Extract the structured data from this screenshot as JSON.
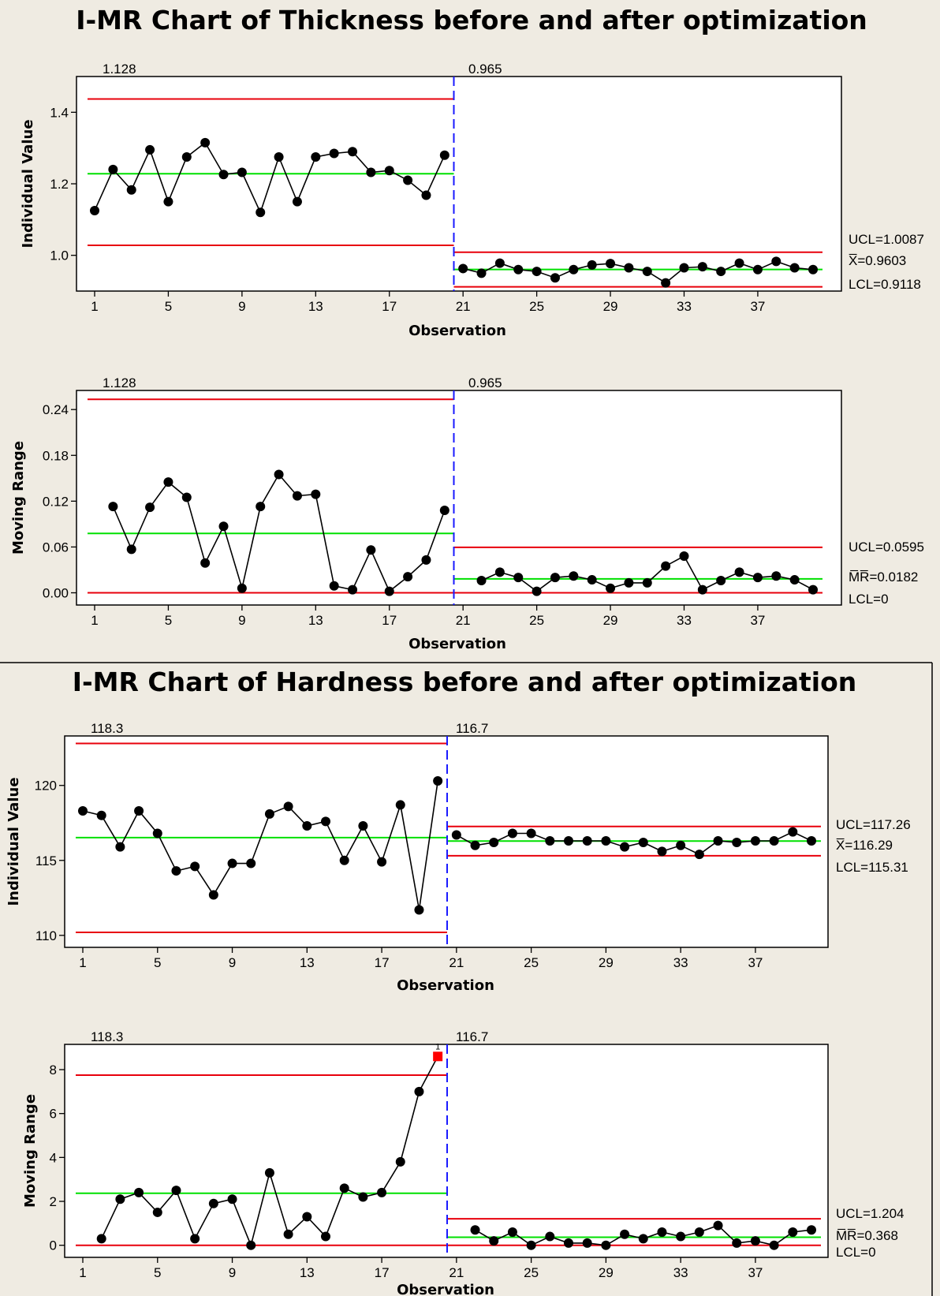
{
  "chart_data": [
    {
      "type": "line",
      "title": "I-MR Chart of Thickness before and after optimization",
      "xlabel": "Observation",
      "ylabel": "Individual Value",
      "xticks": [
        1,
        5,
        9,
        13,
        17,
        21,
        25,
        29,
        33,
        37
      ],
      "yticks": [
        "1.0",
        "1.2",
        "1.4"
      ],
      "ylim": [
        0.9,
        1.5
      ],
      "xlim": [
        0,
        41
      ],
      "stage_split": 20.5,
      "stages": [
        {
          "label": "1.128",
          "x_start": 1,
          "x_end": 20,
          "center": 1.228,
          "ucl": 1.437,
          "lcl": 1.028
        },
        {
          "label": "0.965",
          "x_start": 21,
          "x_end": 40,
          "center": 0.9603,
          "ucl": 1.0087,
          "lcl": 0.9118
        }
      ],
      "limit_labels": [
        "UCL=1.0087",
        "X̅=0.9603",
        "LCL=0.9118"
      ],
      "points": [
        {
          "x": 1,
          "y": 1.125
        },
        {
          "x": 2,
          "y": 1.24
        },
        {
          "x": 3,
          "y": 1.183
        },
        {
          "x": 4,
          "y": 1.295
        },
        {
          "x": 5,
          "y": 1.15
        },
        {
          "x": 6,
          "y": 1.275
        },
        {
          "x": 7,
          "y": 1.315
        },
        {
          "x": 8,
          "y": 1.226
        },
        {
          "x": 9,
          "y": 1.232
        },
        {
          "x": 10,
          "y": 1.12
        },
        {
          "x": 11,
          "y": 1.275
        },
        {
          "x": 12,
          "y": 1.15
        },
        {
          "x": 13,
          "y": 1.275
        },
        {
          "x": 14,
          "y": 1.285
        },
        {
          "x": 15,
          "y": 1.29
        },
        {
          "x": 16,
          "y": 1.232
        },
        {
          "x": 17,
          "y": 1.237
        },
        {
          "x": 18,
          "y": 1.21
        },
        {
          "x": 19,
          "y": 1.168
        },
        {
          "x": 20,
          "y": 1.28
        },
        {
          "x": 21,
          "y": 0.963
        },
        {
          "x": 22,
          "y": 0.95
        },
        {
          "x": 23,
          "y": 0.978
        },
        {
          "x": 24,
          "y": 0.96
        },
        {
          "x": 25,
          "y": 0.955
        },
        {
          "x": 26,
          "y": 0.937
        },
        {
          "x": 27,
          "y": 0.96
        },
        {
          "x": 28,
          "y": 0.973
        },
        {
          "x": 29,
          "y": 0.977
        },
        {
          "x": 30,
          "y": 0.965
        },
        {
          "x": 31,
          "y": 0.955
        },
        {
          "x": 32,
          "y": 0.923
        },
        {
          "x": 33,
          "y": 0.965
        },
        {
          "x": 34,
          "y": 0.968
        },
        {
          "x": 35,
          "y": 0.955
        },
        {
          "x": 36,
          "y": 0.978
        },
        {
          "x": 37,
          "y": 0.96
        },
        {
          "x": 38,
          "y": 0.983
        },
        {
          "x": 39,
          "y": 0.965
        },
        {
          "x": 40,
          "y": 0.96
        }
      ]
    },
    {
      "type": "line",
      "title": "",
      "xlabel": "Observation",
      "ylabel": "Moving Range",
      "xticks": [
        1,
        5,
        9,
        13,
        17,
        21,
        25,
        29,
        33,
        37
      ],
      "yticks": [
        "0.00",
        "0.06",
        "0.12",
        "0.18",
        "0.24"
      ],
      "ylim": [
        -0.016,
        0.265
      ],
      "xlim": [
        0,
        41
      ],
      "stage_split": 20.5,
      "stages": [
        {
          "label": "1.128",
          "x_start": 1,
          "x_end": 20,
          "center": 0.0777,
          "ucl": 0.2534,
          "lcl": 0
        },
        {
          "label": "0.965",
          "x_start": 21,
          "x_end": 40,
          "center": 0.0182,
          "ucl": 0.0595,
          "lcl": 0
        }
      ],
      "limit_labels": [
        "UCL=0.0595",
        "M̅R̅=0.0182",
        "LCL=0"
      ],
      "points": [
        {
          "x": 2,
          "y": 0.113
        },
        {
          "x": 3,
          "y": 0.057
        },
        {
          "x": 4,
          "y": 0.112
        },
        {
          "x": 5,
          "y": 0.145
        },
        {
          "x": 6,
          "y": 0.125
        },
        {
          "x": 7,
          "y": 0.039
        },
        {
          "x": 8,
          "y": 0.087
        },
        {
          "x": 9,
          "y": 0.006
        },
        {
          "x": 10,
          "y": 0.113
        },
        {
          "x": 11,
          "y": 0.155
        },
        {
          "x": 12,
          "y": 0.127
        },
        {
          "x": 13,
          "y": 0.129
        },
        {
          "x": 14,
          "y": 0.009
        },
        {
          "x": 15,
          "y": 0.004
        },
        {
          "x": 16,
          "y": 0.056
        },
        {
          "x": 17,
          "y": 0.002
        },
        {
          "x": 18,
          "y": 0.021
        },
        {
          "x": 19,
          "y": 0.043
        },
        {
          "x": 20,
          "y": 0.108
        },
        {
          "x": 22,
          "y": 0.016
        },
        {
          "x": 23,
          "y": 0.027
        },
        {
          "x": 24,
          "y": 0.02
        },
        {
          "x": 25,
          "y": 0.002
        },
        {
          "x": 26,
          "y": 0.02
        },
        {
          "x": 27,
          "y": 0.022
        },
        {
          "x": 28,
          "y": 0.017
        },
        {
          "x": 29,
          "y": 0.006
        },
        {
          "x": 30,
          "y": 0.013
        },
        {
          "x": 31,
          "y": 0.013
        },
        {
          "x": 32,
          "y": 0.035
        },
        {
          "x": 33,
          "y": 0.048
        },
        {
          "x": 34,
          "y": 0.004
        },
        {
          "x": 35,
          "y": 0.016
        },
        {
          "x": 36,
          "y": 0.027
        },
        {
          "x": 37,
          "y": 0.02
        },
        {
          "x": 38,
          "y": 0.022
        },
        {
          "x": 39,
          "y": 0.017
        },
        {
          "x": 40,
          "y": 0.004
        }
      ]
    },
    {
      "type": "line",
      "title": "I-MR Chart of Hardness before and after optimization",
      "xlabel": "Observation",
      "ylabel": "Individual Value",
      "xticks": [
        1,
        5,
        9,
        13,
        17,
        21,
        25,
        29,
        33,
        37
      ],
      "yticks": [
        "110",
        "115",
        "120"
      ],
      "ylim": [
        109.2,
        123.3
      ],
      "xlim": [
        0,
        41
      ],
      "stage_split": 20.5,
      "stages": [
        {
          "label": "118.3",
          "x_start": 1,
          "x_end": 20,
          "center": 116.52,
          "ucl": 122.8,
          "lcl": 110.2
        },
        {
          "label": "116.7",
          "x_start": 21,
          "x_end": 40,
          "center": 116.29,
          "ucl": 117.26,
          "lcl": 115.31
        }
      ],
      "limit_labels": [
        "UCL=117.26",
        "X̅=116.29",
        "LCL=115.31"
      ],
      "points": [
        {
          "x": 1,
          "y": 118.3
        },
        {
          "x": 2,
          "y": 118.0
        },
        {
          "x": 3,
          "y": 115.9
        },
        {
          "x": 4,
          "y": 118.3
        },
        {
          "x": 5,
          "y": 116.8
        },
        {
          "x": 6,
          "y": 114.3
        },
        {
          "x": 7,
          "y": 114.6
        },
        {
          "x": 8,
          "y": 112.7
        },
        {
          "x": 9,
          "y": 114.8
        },
        {
          "x": 10,
          "y": 114.8
        },
        {
          "x": 11,
          "y": 118.1
        },
        {
          "x": 12,
          "y": 118.6
        },
        {
          "x": 13,
          "y": 117.3
        },
        {
          "x": 14,
          "y": 117.6
        },
        {
          "x": 15,
          "y": 115.0
        },
        {
          "x": 16,
          "y": 117.3
        },
        {
          "x": 17,
          "y": 114.9
        },
        {
          "x": 18,
          "y": 118.7
        },
        {
          "x": 19,
          "y": 111.7
        },
        {
          "x": 20,
          "y": 120.3
        },
        {
          "x": 21,
          "y": 116.7
        },
        {
          "x": 22,
          "y": 116.0
        },
        {
          "x": 23,
          "y": 116.2
        },
        {
          "x": 24,
          "y": 116.8
        },
        {
          "x": 25,
          "y": 116.8
        },
        {
          "x": 26,
          "y": 116.3
        },
        {
          "x": 27,
          "y": 116.3
        },
        {
          "x": 28,
          "y": 116.3
        },
        {
          "x": 29,
          "y": 116.3
        },
        {
          "x": 30,
          "y": 115.9
        },
        {
          "x": 31,
          "y": 116.2
        },
        {
          "x": 32,
          "y": 115.6
        },
        {
          "x": 33,
          "y": 116.0
        },
        {
          "x": 34,
          "y": 115.4
        },
        {
          "x": 35,
          "y": 116.3
        },
        {
          "x": 36,
          "y": 116.2
        },
        {
          "x": 37,
          "y": 116.3
        },
        {
          "x": 38,
          "y": 116.3
        },
        {
          "x": 39,
          "y": 116.9
        },
        {
          "x": 40,
          "y": 116.3
        }
      ]
    },
    {
      "type": "line",
      "title": "",
      "xlabel": "Observation",
      "ylabel": "Moving Range",
      "xticks": [
        1,
        5,
        9,
        13,
        17,
        21,
        25,
        29,
        33,
        37
      ],
      "yticks": [
        "0",
        "2",
        "4",
        "6",
        "8"
      ],
      "ylim": [
        -0.55,
        9.15
      ],
      "xlim": [
        0,
        41
      ],
      "stage_split": 20.5,
      "stages": [
        {
          "label": "118.3",
          "x_start": 1,
          "x_end": 20,
          "center": 2.37,
          "ucl": 7.75,
          "lcl": 0
        },
        {
          "label": "116.7",
          "x_start": 21,
          "x_end": 40,
          "center": 0.368,
          "ucl": 1.204,
          "lcl": 0
        }
      ],
      "limit_labels": [
        "UCL=1.204",
        "M̅R̅=0.368",
        "LCL=0"
      ],
      "flag_label": "1",
      "points": [
        {
          "x": 2,
          "y": 0.3
        },
        {
          "x": 3,
          "y": 2.1
        },
        {
          "x": 4,
          "y": 2.4
        },
        {
          "x": 5,
          "y": 1.5
        },
        {
          "x": 6,
          "y": 2.5
        },
        {
          "x": 7,
          "y": 0.3
        },
        {
          "x": 8,
          "y": 1.9
        },
        {
          "x": 9,
          "y": 2.1
        },
        {
          "x": 10,
          "y": 0.0
        },
        {
          "x": 11,
          "y": 3.3
        },
        {
          "x": 12,
          "y": 0.5
        },
        {
          "x": 13,
          "y": 1.3
        },
        {
          "x": 14,
          "y": 0.4
        },
        {
          "x": 15,
          "y": 2.6
        },
        {
          "x": 16,
          "y": 2.2
        },
        {
          "x": 17,
          "y": 2.4
        },
        {
          "x": 18,
          "y": 3.8
        },
        {
          "x": 19,
          "y": 7.0
        },
        {
          "x": 20,
          "y": 8.6,
          "flag": true
        },
        {
          "x": 22,
          "y": 0.7
        },
        {
          "x": 23,
          "y": 0.2
        },
        {
          "x": 24,
          "y": 0.6
        },
        {
          "x": 25,
          "y": 0.0
        },
        {
          "x": 26,
          "y": 0.4
        },
        {
          "x": 27,
          "y": 0.1
        },
        {
          "x": 28,
          "y": 0.1
        },
        {
          "x": 29,
          "y": 0.0
        },
        {
          "x": 30,
          "y": 0.5
        },
        {
          "x": 31,
          "y": 0.3
        },
        {
          "x": 32,
          "y": 0.6
        },
        {
          "x": 33,
          "y": 0.4
        },
        {
          "x": 34,
          "y": 0.6
        },
        {
          "x": 35,
          "y": 0.9
        },
        {
          "x": 36,
          "y": 0.1
        },
        {
          "x": 37,
          "y": 0.2
        },
        {
          "x": 38,
          "y": 0.0
        },
        {
          "x": 39,
          "y": 0.6
        },
        {
          "x": 40,
          "y": 0.7
        }
      ]
    }
  ]
}
